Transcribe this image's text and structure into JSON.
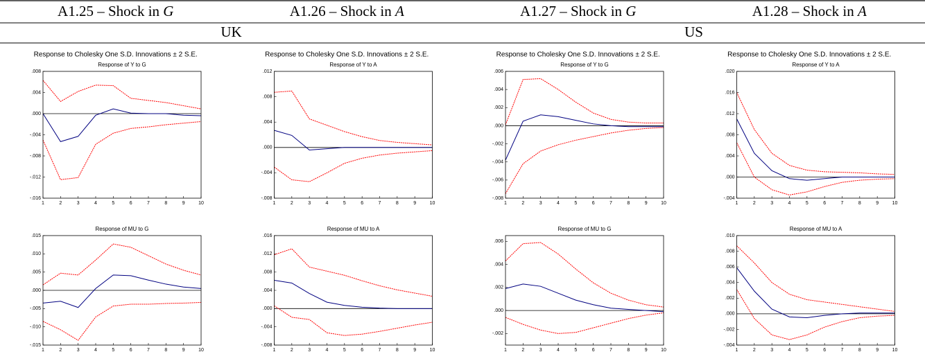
{
  "columns": [
    {
      "label": "A1.25 – Shock in ",
      "shock": "G"
    },
    {
      "label": "A1.26 – Shock in ",
      "shock": "A"
    },
    {
      "label": "A1.27 – Shock in ",
      "shock": "G"
    },
    {
      "label": "A1.28 – Shock in ",
      "shock": "A"
    }
  ],
  "regions": [
    "UK",
    "US"
  ],
  "suptitles": [
    "Response to Cholesky One S.D. Innovations ± 2 S.E.",
    "Response to Cholesky One S.D. Innovations ± 2 S.E.",
    "Response to Cholesky One S.D. Innovations ± 2 S.E.",
    "Response to Cholesky One S.D. Innovations ± 2 S.E."
  ],
  "chart_data": [
    {
      "type": "line",
      "title": "Response of Y to G",
      "x": [
        1,
        2,
        3,
        4,
        5,
        6,
        7,
        8,
        9,
        10
      ],
      "xlim": [
        1,
        10
      ],
      "xticks": [
        1,
        2,
        3,
        4,
        5,
        6,
        7,
        8,
        9,
        10
      ],
      "ylim": [
        -0.016,
        0.008
      ],
      "yticks": [
        {
          "value": -0.016,
          "label": "-.016"
        },
        {
          "value": -0.012,
          "label": "-.012"
        },
        {
          "value": -0.008,
          "label": "-.008"
        },
        {
          "value": -0.004,
          "label": "-.004"
        },
        {
          "value": 0,
          "label": ".000"
        },
        {
          "value": 0.004,
          "label": ".004"
        },
        {
          "value": 0.008,
          "label": ".008"
        }
      ],
      "zero_line": true,
      "series": [
        {
          "color": "#000080",
          "values": [
            0.0,
            -0.0053,
            -0.0043,
            -0.0003,
            0.0009,
            0.0001,
            0.0,
            0.0,
            -0.0003,
            -0.0004
          ]
        },
        {
          "color": "#ff0000",
          "dashed": true,
          "values": [
            0.0063,
            0.0023,
            0.0042,
            0.0054,
            0.0053,
            0.0029,
            0.0025,
            0.0021,
            0.0015,
            0.0009
          ]
        },
        {
          "color": "#ff0000",
          "dashed": true,
          "values": [
            -0.005,
            -0.0125,
            -0.0121,
            -0.0058,
            -0.0037,
            -0.0028,
            -0.0025,
            -0.0021,
            -0.0018,
            -0.0015
          ]
        }
      ]
    },
    {
      "type": "line",
      "title": "Response of Y to A",
      "x": [
        1,
        2,
        3,
        4,
        5,
        6,
        7,
        8,
        9,
        10
      ],
      "xlim": [
        1,
        10
      ],
      "xticks": [
        1,
        2,
        3,
        4,
        5,
        6,
        7,
        8,
        9,
        10
      ],
      "ylim": [
        -0.008,
        0.012
      ],
      "yticks": [
        {
          "value": -0.008,
          "label": "-.008"
        },
        {
          "value": -0.004,
          "label": "-.004"
        },
        {
          "value": 0,
          "label": ".000"
        },
        {
          "value": 0.004,
          "label": ".004"
        },
        {
          "value": 0.008,
          "label": ".008"
        },
        {
          "value": 0.012,
          "label": ".012"
        }
      ],
      "zero_line": true,
      "series": [
        {
          "color": "#000080",
          "values": [
            0.0027,
            0.0019,
            -0.0004,
            -0.0002,
            0.0,
            0.0,
            0.0,
            0.0,
            0.0,
            0.0
          ]
        },
        {
          "color": "#ff0000",
          "dashed": true,
          "values": [
            0.0087,
            0.0089,
            0.0045,
            0.0035,
            0.0025,
            0.0017,
            0.0011,
            0.0008,
            0.0006,
            0.0004
          ]
        },
        {
          "color": "#ff0000",
          "dashed": true,
          "values": [
            -0.0031,
            -0.0051,
            -0.0054,
            -0.004,
            -0.0025,
            -0.0017,
            -0.0012,
            -0.0009,
            -0.0007,
            -0.0005
          ]
        }
      ]
    },
    {
      "type": "line",
      "title": "Response of Y to G",
      "x": [
        1,
        2,
        3,
        4,
        5,
        6,
        7,
        8,
        9,
        10
      ],
      "xlim": [
        1,
        10
      ],
      "xticks": [
        1,
        2,
        3,
        4,
        5,
        6,
        7,
        8,
        9,
        10
      ],
      "ylim": [
        -0.008,
        0.006
      ],
      "yticks": [
        {
          "value": -0.008,
          "label": "-.008"
        },
        {
          "value": -0.006,
          "label": "-.006"
        },
        {
          "value": -0.004,
          "label": "-.004"
        },
        {
          "value": -0.002,
          "label": "-.002"
        },
        {
          "value": 0,
          "label": ".000"
        },
        {
          "value": 0.002,
          "label": ".002"
        },
        {
          "value": 0.004,
          "label": ".004"
        },
        {
          "value": 0.006,
          "label": ".006"
        }
      ],
      "zero_line": true,
      "series": [
        {
          "color": "#000080",
          "values": [
            -0.0038,
            0.0005,
            0.0012,
            0.001,
            0.0006,
            0.0002,
            0.0,
            -0.0001,
            -0.0001,
            -0.0001
          ]
        },
        {
          "color": "#ff0000",
          "dashed": true,
          "values": [
            0.0001,
            0.0051,
            0.0052,
            0.004,
            0.0026,
            0.0014,
            0.0007,
            0.0004,
            0.0003,
            0.0003
          ]
        },
        {
          "color": "#ff0000",
          "dashed": true,
          "values": [
            -0.0075,
            -0.0042,
            -0.0028,
            -0.0021,
            -0.0016,
            -0.0012,
            -0.0008,
            -0.0005,
            -0.0003,
            -0.0002
          ]
        }
      ]
    },
    {
      "type": "line",
      "title": "Response of Y to A",
      "x": [
        1,
        2,
        3,
        4,
        5,
        6,
        7,
        8,
        9,
        10
      ],
      "xlim": [
        1,
        10
      ],
      "xticks": [
        1,
        2,
        3,
        4,
        5,
        6,
        7,
        8,
        9,
        10
      ],
      "ylim": [
        -0.004,
        0.02
      ],
      "yticks": [
        {
          "value": -0.004,
          "label": "-.004"
        },
        {
          "value": 0,
          "label": ".000"
        },
        {
          "value": 0.004,
          "label": ".004"
        },
        {
          "value": 0.008,
          "label": ".008"
        },
        {
          "value": 0.012,
          "label": ".012"
        },
        {
          "value": 0.016,
          "label": ".016"
        },
        {
          "value": 0.02,
          "label": ".020"
        }
      ],
      "zero_line": true,
      "series": [
        {
          "color": "#000080",
          "values": [
            0.011,
            0.0045,
            0.0012,
            -0.0003,
            -0.0006,
            -0.0003,
            0.0,
            0.0,
            0.0,
            0.0
          ]
        },
        {
          "color": "#ff0000",
          "dashed": true,
          "values": [
            0.016,
            0.009,
            0.0045,
            0.0022,
            0.0013,
            0.001,
            0.0009,
            0.0008,
            0.0006,
            0.0005
          ]
        },
        {
          "color": "#ff0000",
          "dashed": true,
          "values": [
            0.0065,
            0.0,
            -0.0024,
            -0.0034,
            -0.0028,
            -0.0018,
            -0.001,
            -0.0006,
            -0.0004,
            -0.0003
          ]
        }
      ]
    },
    {
      "type": "line",
      "title": "Response of MU to G",
      "x": [
        1,
        2,
        3,
        4,
        5,
        6,
        7,
        8,
        9,
        10
      ],
      "xlim": [
        1,
        10
      ],
      "xticks": [
        1,
        2,
        3,
        4,
        5,
        6,
        7,
        8,
        9,
        10
      ],
      "ylim": [
        -0.015,
        0.015
      ],
      "yticks": [
        {
          "value": -0.015,
          "label": "-.015"
        },
        {
          "value": -0.01,
          "label": "-.010"
        },
        {
          "value": -0.005,
          "label": "-.005"
        },
        {
          "value": 0,
          "label": ".000"
        },
        {
          "value": 0.005,
          "label": ".005"
        },
        {
          "value": 0.01,
          "label": ".010"
        },
        {
          "value": 0.015,
          "label": ".015"
        }
      ],
      "zero_line": true,
      "series": [
        {
          "color": "#000080",
          "values": [
            -0.0035,
            -0.003,
            -0.0047,
            0.0005,
            0.0042,
            0.004,
            0.0028,
            0.0017,
            0.0009,
            0.0005
          ]
        },
        {
          "color": "#ff0000",
          "dashed": true,
          "values": [
            0.0015,
            0.0047,
            0.0042,
            0.0083,
            0.0127,
            0.0118,
            0.0095,
            0.0072,
            0.0055,
            0.0042
          ]
        },
        {
          "color": "#ff0000",
          "dashed": true,
          "values": [
            -0.0085,
            -0.0108,
            -0.0137,
            -0.0073,
            -0.0043,
            -0.0038,
            -0.0038,
            -0.0036,
            -0.0035,
            -0.0033
          ]
        }
      ]
    },
    {
      "type": "line",
      "title": "Response of MU to A",
      "x": [
        1,
        2,
        3,
        4,
        5,
        6,
        7,
        8,
        9,
        10
      ],
      "xlim": [
        1,
        10
      ],
      "xticks": [
        1,
        2,
        3,
        4,
        5,
        6,
        7,
        8,
        9,
        10
      ],
      "ylim": [
        -0.008,
        0.016
      ],
      "yticks": [
        {
          "value": -0.008,
          "label": "-.008"
        },
        {
          "value": -0.004,
          "label": "-.004"
        },
        {
          "value": 0,
          "label": ".000"
        },
        {
          "value": 0.004,
          "label": ".004"
        },
        {
          "value": 0.008,
          "label": ".008"
        },
        {
          "value": 0.012,
          "label": ".012"
        },
        {
          "value": 0.016,
          "label": ".016"
        }
      ],
      "zero_line": true,
      "series": [
        {
          "color": "#000080",
          "values": [
            0.0062,
            0.0056,
            0.0033,
            0.0014,
            0.0007,
            0.0003,
            0.0001,
            0.0,
            0.0,
            0.0
          ]
        },
        {
          "color": "#ff0000",
          "dashed": true,
          "values": [
            0.0118,
            0.0131,
            0.0091,
            0.0082,
            0.0073,
            0.0061,
            0.005,
            0.0041,
            0.0034,
            0.0027
          ]
        },
        {
          "color": "#ff0000",
          "dashed": true,
          "values": [
            0.0006,
            -0.0019,
            -0.0024,
            -0.0053,
            -0.0059,
            -0.0056,
            -0.005,
            -0.0043,
            -0.0036,
            -0.003
          ]
        }
      ]
    },
    {
      "type": "line",
      "title": "Response of MU to G",
      "x": [
        1,
        2,
        3,
        4,
        5,
        6,
        7,
        8,
        9,
        10
      ],
      "xlim": [
        1,
        10
      ],
      "xticks": [
        1,
        2,
        3,
        4,
        5,
        6,
        7,
        8,
        9,
        10
      ],
      "ylim": [
        -0.003,
        0.0065
      ],
      "yticks": [
        {
          "value": -0.002,
          "label": "-.002"
        },
        {
          "value": 0,
          "label": ".000"
        },
        {
          "value": 0.002,
          "label": ".002"
        },
        {
          "value": 0.004,
          "label": ".004"
        },
        {
          "value": 0.006,
          "label": ".006"
        }
      ],
      "zero_line": true,
      "series": [
        {
          "color": "#000080",
          "values": [
            0.0019,
            0.0023,
            0.0021,
            0.0015,
            0.0009,
            0.0005,
            0.0002,
            0.0001,
            0.0,
            -0.0001
          ]
        },
        {
          "color": "#ff0000",
          "dashed": true,
          "values": [
            0.0043,
            0.0058,
            0.0059,
            0.0049,
            0.0036,
            0.0024,
            0.0015,
            0.0009,
            0.0005,
            0.0003
          ]
        },
        {
          "color": "#ff0000",
          "dashed": true,
          "values": [
            -0.0006,
            -0.0012,
            -0.0017,
            -0.002,
            -0.0019,
            -0.0015,
            -0.0011,
            -0.0007,
            -0.0004,
            -0.0002
          ]
        }
      ]
    },
    {
      "type": "line",
      "title": "Response of MU to A",
      "x": [
        1,
        2,
        3,
        4,
        5,
        6,
        7,
        8,
        9,
        10
      ],
      "xlim": [
        1,
        10
      ],
      "xticks": [
        1,
        2,
        3,
        4,
        5,
        6,
        7,
        8,
        9,
        10
      ],
      "ylim": [
        -0.004,
        0.01
      ],
      "yticks": [
        {
          "value": -0.004,
          "label": "-.004"
        },
        {
          "value": -0.002,
          "label": "-.002"
        },
        {
          "value": 0,
          "label": ".000"
        },
        {
          "value": 0.002,
          "label": ".002"
        },
        {
          "value": 0.004,
          "label": ".004"
        },
        {
          "value": 0.006,
          "label": ".006"
        },
        {
          "value": 0.008,
          "label": ".008"
        },
        {
          "value": 0.01,
          "label": ".010"
        }
      ],
      "zero_line": true,
      "series": [
        {
          "color": "#000080",
          "values": [
            0.0059,
            0.0029,
            0.0006,
            -0.0004,
            -0.0005,
            -0.0002,
            0.0,
            0.0001,
            0.0001,
            0.0001
          ]
        },
        {
          "color": "#ff0000",
          "dashed": true,
          "values": [
            0.0087,
            0.0065,
            0.004,
            0.0025,
            0.0018,
            0.0015,
            0.0012,
            0.0009,
            0.0006,
            0.0003
          ]
        },
        {
          "color": "#ff0000",
          "dashed": true,
          "values": [
            0.0031,
            -0.0006,
            -0.0027,
            -0.0033,
            -0.0027,
            -0.0017,
            -0.001,
            -0.0005,
            -0.0003,
            -0.0002
          ]
        }
      ]
    }
  ]
}
